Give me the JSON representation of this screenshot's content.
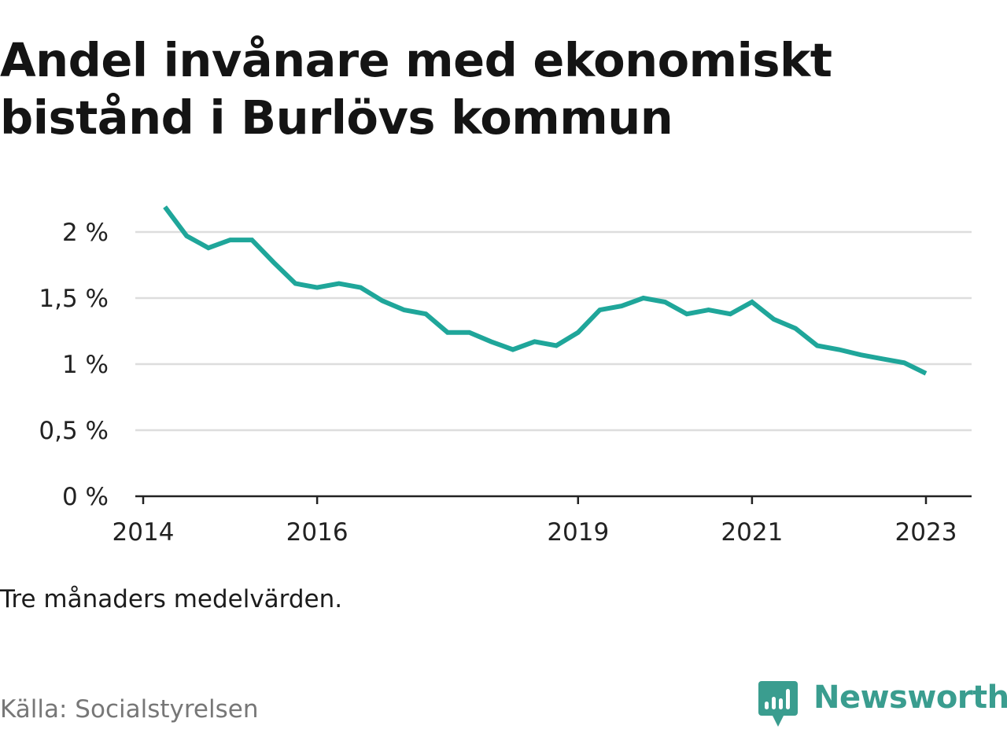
{
  "title": "Andel invånare med ekonomiskt bistånd i Burlövs kommun",
  "note": "Tre månaders medelvärden.",
  "source": "Källa: Socialstyrelsen",
  "brand": {
    "name": "Newsworthy",
    "icon": "newsworthy-logo-icon",
    "color": "#3a9d8f"
  },
  "chart_data": {
    "type": "line",
    "title": "Andel invånare med ekonomiskt bistånd i Burlövs kommun",
    "xlabel": "",
    "ylabel": "",
    "ylim": [
      0,
      2.2
    ],
    "yticks": [
      0,
      0.5,
      1,
      1.5,
      2
    ],
    "ytick_labels": [
      "0 %",
      "0,5 %",
      "1 %",
      "1,5 %",
      "2 %"
    ],
    "xticks": [
      2014,
      2016,
      2019,
      2021,
      2023
    ],
    "xtick_labels": [
      "2014",
      "2016",
      "2019",
      "2021",
      "2023"
    ],
    "grid": true,
    "color": "#1fa69a",
    "series": [
      {
        "x": [
          "2014-04",
          "2014-07",
          "2014-10",
          "2015-01",
          "2015-04",
          "2015-07",
          "2015-10",
          "2016-01",
          "2016-04",
          "2016-07",
          "2016-10",
          "2017-01",
          "2017-04",
          "2017-07",
          "2017-10",
          "2018-01",
          "2018-04",
          "2018-07",
          "2018-10",
          "2019-01",
          "2019-04",
          "2019-07",
          "2019-10",
          "2020-01",
          "2020-04",
          "2020-07",
          "2020-10",
          "2021-01",
          "2021-04",
          "2021-07",
          "2021-10",
          "2022-01",
          "2022-04",
          "2022-07",
          "2022-10",
          "2023-01"
        ],
        "values": [
          2.19,
          1.97,
          1.88,
          1.94,
          1.94,
          1.77,
          1.61,
          1.58,
          1.61,
          1.58,
          1.48,
          1.41,
          1.38,
          1.24,
          1.24,
          1.17,
          1.11,
          1.17,
          1.14,
          1.24,
          1.41,
          1.44,
          1.5,
          1.47,
          1.38,
          1.41,
          1.38,
          1.47,
          1.34,
          1.27,
          1.14,
          1.11,
          1.07,
          1.04,
          1.01,
          0.93
        ]
      }
    ]
  }
}
